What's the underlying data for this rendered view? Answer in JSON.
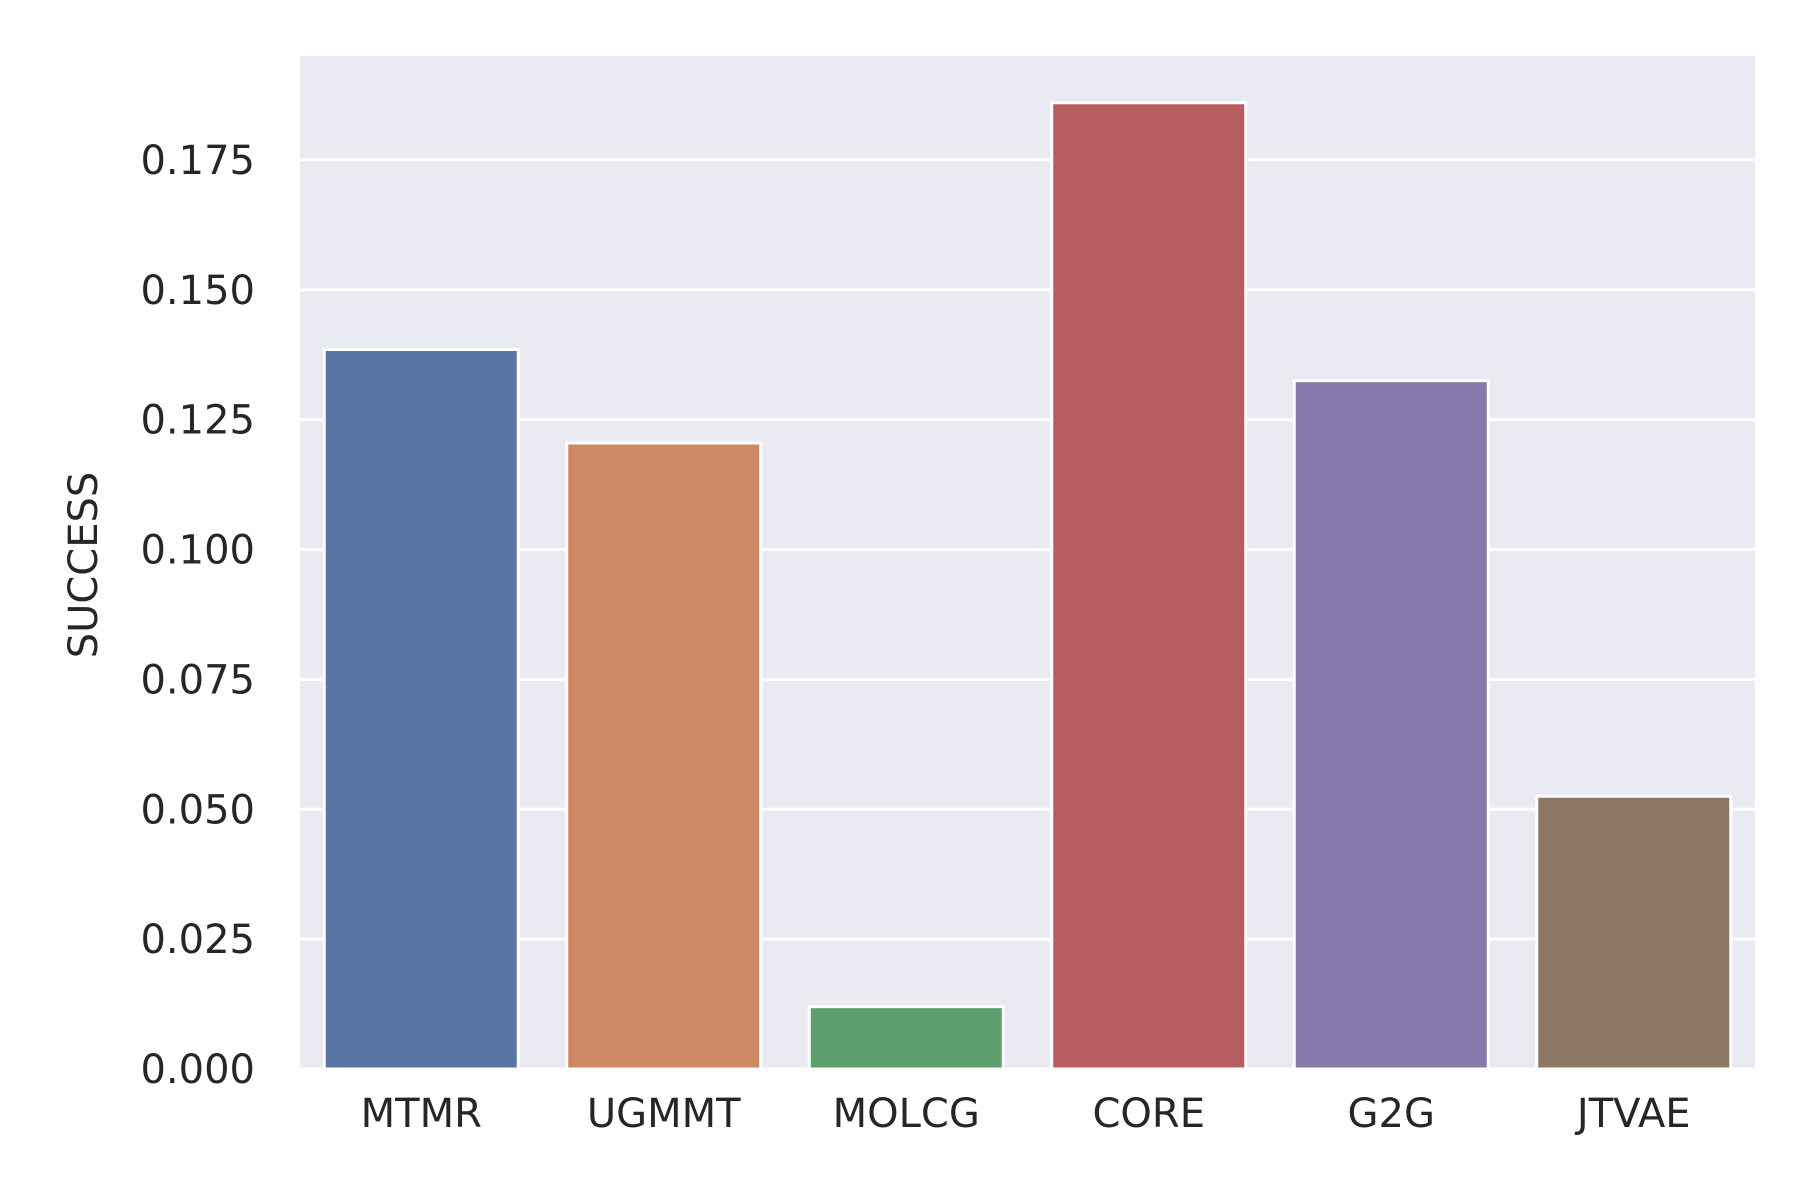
{
  "chart_data": {
    "type": "bar",
    "title": "",
    "xlabel": "",
    "ylabel": "SUCCESS",
    "categories": [
      "MTMR",
      "UGMMT",
      "MOLCG",
      "CORE",
      "G2G",
      "JTVAE"
    ],
    "values": [
      0.1385,
      0.1205,
      0.012,
      0.186,
      0.1325,
      0.0525
    ],
    "colors": [
      "#5975a4",
      "#cc8963",
      "#5f9e6e",
      "#b55d60",
      "#857aab",
      "#8d7866"
    ],
    "ylim": [
      0,
      0.195
    ],
    "yticks": [
      0.0,
      0.025,
      0.05,
      0.075,
      0.1,
      0.125,
      0.15,
      0.175
    ],
    "ytick_labels": [
      "0.000",
      "0.025",
      "0.050",
      "0.075",
      "0.100",
      "0.125",
      "0.150",
      "0.175"
    ],
    "grid": true,
    "background": "#eaeaf2",
    "grid_color": "#ffffff"
  }
}
